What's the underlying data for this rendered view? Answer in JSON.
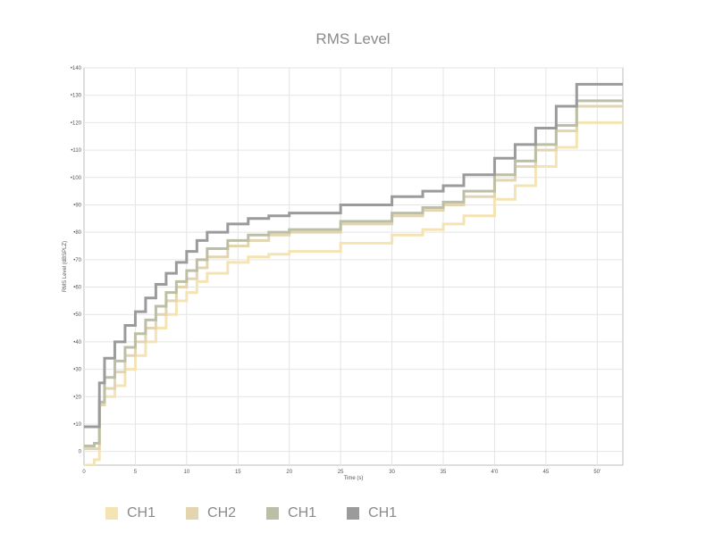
{
  "chart_data": {
    "type": "line",
    "title": "RMS Level",
    "xlabel": "Time (s)",
    "ylabel": "RMS Level (dBSPLZ)",
    "xlim": [
      0,
      52.5
    ],
    "ylim": [
      -5,
      140
    ],
    "x_ticks": [
      0,
      5,
      10,
      15,
      20,
      25,
      30,
      35,
      40,
      45,
      50
    ],
    "x_tick_labels": [
      "0",
      "5",
      "10",
      "15",
      "20",
      "25",
      "30",
      "35",
      "4'0",
      "45",
      "50'"
    ],
    "y_ticks": [
      0,
      10,
      20,
      30,
      40,
      50,
      60,
      70,
      80,
      90,
      100,
      110,
      120,
      130,
      140
    ],
    "y_tick_labels": [
      "0",
      "•10",
      "•20",
      "•30",
      "•40",
      "•50",
      "•60",
      "•70",
      "•80",
      "•90",
      "•100",
      "•110",
      "•120",
      "•130",
      "•140"
    ],
    "grid": true,
    "legend_position": "bottom-left",
    "x": [
      0,
      1,
      1.5,
      2,
      3,
      4,
      5,
      6,
      7,
      8,
      9,
      10,
      11,
      12,
      14,
      16,
      18,
      20,
      25,
      30,
      33,
      35,
      37,
      40,
      42,
      44,
      46,
      48,
      52.5
    ],
    "series": [
      {
        "name": "CH1",
        "color": "#f5e4b3",
        "values": [
          -5,
          -3,
          18,
          20,
          24,
          30,
          35,
          40,
          45,
          50,
          55,
          58,
          62,
          65,
          69,
          71,
          72,
          73,
          76,
          79,
          81,
          83,
          86,
          92,
          97,
          104,
          111,
          120,
          120
        ]
      },
      {
        "name": "CH2",
        "color": "#e3d5b0",
        "values": [
          1,
          1,
          17,
          23,
          29,
          35,
          40,
          45,
          50,
          55,
          60,
          63,
          67,
          71,
          75,
          77,
          79,
          80,
          83,
          86,
          88,
          90,
          93,
          99,
          104,
          110,
          117,
          126,
          126
        ]
      },
      {
        "name": "CH1",
        "color": "#bcbfa6",
        "values": [
          2,
          3,
          18,
          27,
          33,
          38,
          43,
          48,
          53,
          58,
          62,
          66,
          70,
          74,
          77,
          79,
          80,
          81,
          84,
          87,
          89,
          91,
          95,
          101,
          106,
          112,
          119,
          128,
          128
        ]
      },
      {
        "name": "CH1",
        "color": "#9b9b9b",
        "values": [
          9,
          9,
          25,
          34,
          40,
          46,
          51,
          56,
          61,
          65,
          69,
          73,
          77,
          80,
          83,
          85,
          86,
          87,
          90,
          93,
          95,
          97,
          101,
          107,
          112,
          118,
          126,
          134,
          134
        ]
      }
    ]
  }
}
